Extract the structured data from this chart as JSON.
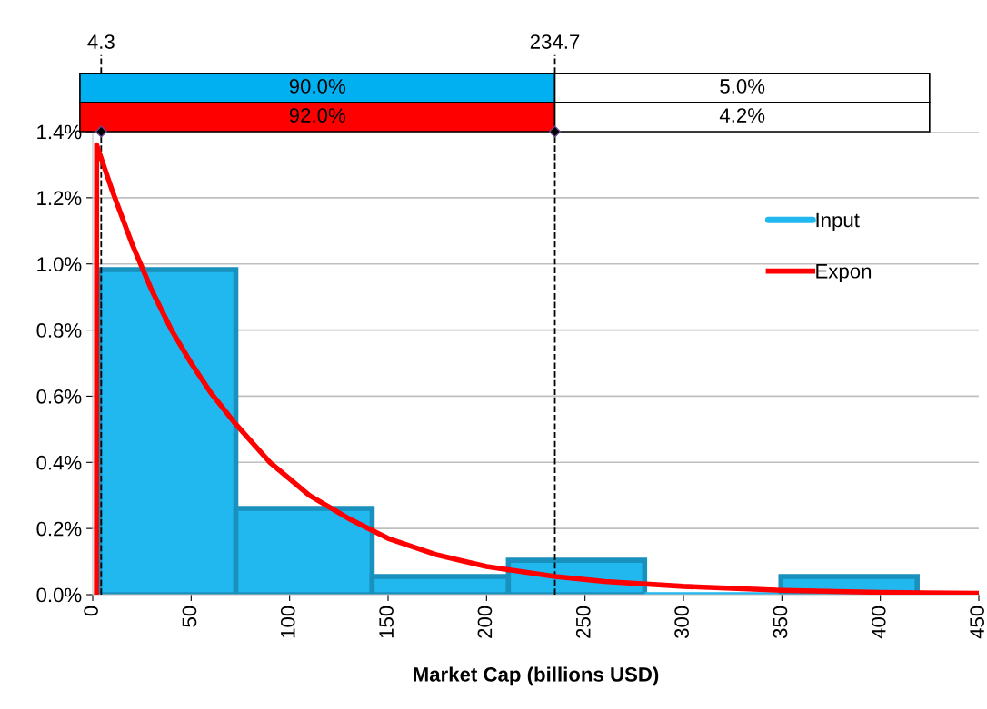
{
  "chart_data": {
    "type": "histogram",
    "xlabel": "Market Cap (billions USD)",
    "bins": [
      3.5,
      72.7,
      141.9,
      211.1,
      280.3,
      349.5,
      418.7
    ],
    "series": [
      {
        "name": "Input",
        "color": "#21b8ef",
        "values": [
          0.983,
          0.261,
          0.055,
          0.104,
          0,
          0.055
        ]
      },
      {
        "name": "Expon",
        "type": "line",
        "color": "#ff0000",
        "x": [
          1.9,
          2,
          10,
          20,
          30,
          40,
          50,
          60,
          72,
          90,
          110,
          130,
          150,
          175,
          200,
          234.7,
          260,
          300,
          350,
          400,
          450
        ],
        "values": [
          0,
          1.36,
          1.22,
          1.06,
          0.92,
          0.8,
          0.7,
          0.61,
          0.52,
          0.4,
          0.3,
          0.23,
          0.17,
          0.12,
          0.085,
          0.055,
          0.04,
          0.025,
          0.013,
          0.007,
          0.004
        ]
      }
    ],
    "ref_lines": [
      {
        "axis": "x",
        "value": 4.3,
        "label": "4.3",
        "line_style": "dashed",
        "color": "#000000"
      },
      {
        "axis": "x",
        "value": 234.7,
        "label": "234.7",
        "line_style": "dashed",
        "color": "#000000"
      }
    ],
    "annotations": [
      "90.0%",
      "5.0%",
      "92.0%",
      "4.2%"
    ],
    "xlim": [
      0,
      450
    ],
    "xticks": [
      0,
      50,
      100,
      150,
      200,
      250,
      300,
      350,
      400,
      450
    ],
    "ylim": [
      0,
      1.4
    ],
    "yticks": [
      {
        "value": 0,
        "label": "0.0%"
      },
      {
        "value": 0.2,
        "label": "0.2%"
      },
      {
        "value": 0.4,
        "label": "0.4%"
      },
      {
        "value": 0.6,
        "label": "0.6%"
      },
      {
        "value": 0.8,
        "label": "0.8%"
      },
      {
        "value": 1.0,
        "label": "1.0%"
      },
      {
        "value": 1.2,
        "label": "1.2%"
      },
      {
        "value": 1.4,
        "label": "1.4%"
      }
    ],
    "grid": "y",
    "legend": "right"
  }
}
